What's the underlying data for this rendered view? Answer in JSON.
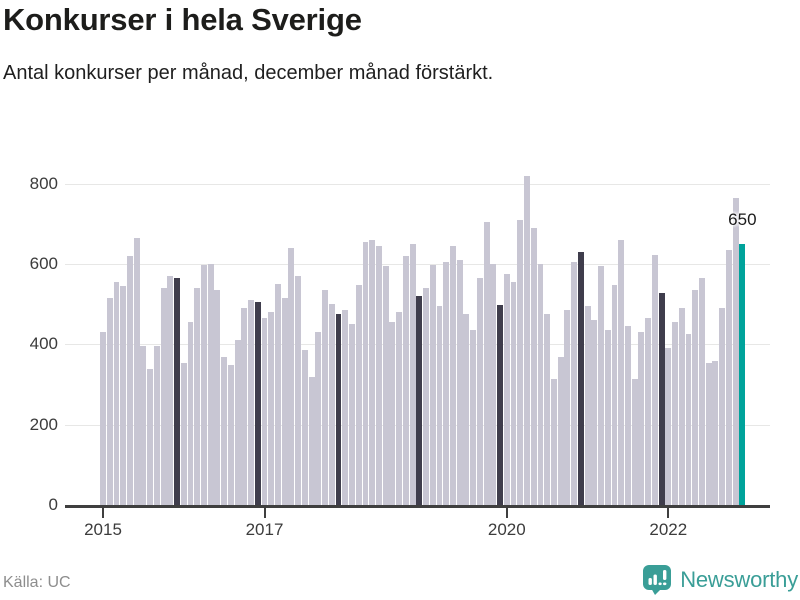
{
  "header": {
    "title": "Konkurser i hela Sverige",
    "subtitle": "Antal konkurser per månad, december månad förstärkt."
  },
  "footer": {
    "source": "Källa: UC",
    "brand": "Newsworthy",
    "brand_color": "#3a9e97",
    "logo_icon": "newsworthy-pin-barchart"
  },
  "chart_data": {
    "type": "bar",
    "title": "Konkurser i hela Sverige",
    "subtitle": "Antal konkurser per månad, december månad förstärkt.",
    "series_name": "Antal konkurser per månad",
    "period_start": "2015-01",
    "period_end": "2022-12",
    "y_ticks": [
      0,
      200,
      400,
      600,
      800
    ],
    "ylim": [
      0,
      850
    ],
    "grid": "horizontal",
    "x_year_ticks": [
      {
        "label": "2015",
        "index": 0
      },
      {
        "label": "2017",
        "index": 24
      },
      {
        "label": "2020",
        "index": 60
      },
      {
        "label": "2022",
        "index": 84
      }
    ],
    "values": [
      430,
      515,
      555,
      545,
      620,
      665,
      395,
      340,
      395,
      540,
      570,
      565,
      355,
      455,
      540,
      598,
      600,
      535,
      370,
      350,
      410,
      490,
      510,
      505,
      465,
      480,
      550,
      515,
      640,
      570,
      385,
      320,
      430,
      535,
      500,
      475,
      485,
      450,
      548,
      655,
      660,
      645,
      595,
      455,
      480,
      620,
      650,
      520,
      540,
      598,
      495,
      605,
      645,
      610,
      475,
      435,
      565,
      705,
      600,
      498,
      575,
      555,
      710,
      820,
      690,
      600,
      475,
      315,
      370,
      485,
      605,
      630,
      495,
      460,
      595,
      435,
      548,
      660,
      445,
      315,
      430,
      465,
      622,
      528,
      390,
      455,
      490,
      425,
      535,
      565,
      355,
      360,
      490,
      635,
      765,
      650
    ],
    "december_indices": [
      11,
      23,
      35,
      47,
      59,
      71,
      83
    ],
    "highlight_index": 95,
    "highlight_value_label": "650",
    "colors": {
      "bar": "#c8c6d3",
      "december": "#3f3d4c",
      "highlight": "#00a39b",
      "gridline": "#e7e7e6",
      "axis": "#3f3f3f"
    },
    "legend": "none"
  }
}
